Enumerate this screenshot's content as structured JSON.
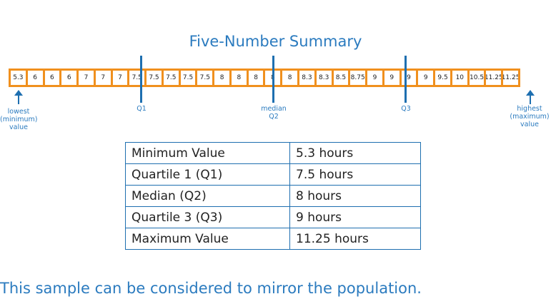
{
  "title": "Five-Number Summary",
  "values": [
    "5.3",
    "6",
    "6",
    "6",
    "7",
    "7",
    "7",
    "7.5",
    "7.5",
    "7.5",
    "7.5",
    "7.5",
    "8",
    "8",
    "8",
    "8",
    "8",
    "8.3",
    "8.3",
    "8.5",
    "8.75",
    "9",
    "9",
    "9",
    "9",
    "9.5",
    "10",
    "10.5",
    "11.25",
    "11.25"
  ],
  "markers": {
    "lowest": "lowest\n(minimum)\nvalue",
    "q1": "Q1",
    "median": "median\nQ2",
    "q3": "Q3",
    "highest": "highest\n(maximum)\nvalue"
  },
  "table": [
    {
      "label": "Minimum Value",
      "value": "5.3 hours"
    },
    {
      "label": "Quartile 1 (Q1)",
      "value": "7.5 hours"
    },
    {
      "label": "Median (Q2)",
      "value": "8 hours"
    },
    {
      "label": "Quartile 3 (Q3)",
      "value": "9 hours"
    },
    {
      "label": "Maximum Value",
      "value": "11.25 hours"
    }
  ],
  "note": "This sample can be considered to mirror the population.",
  "colors": {
    "accent": "#2b7bbf",
    "box": "#f0901e",
    "line": "#1e6fb0"
  }
}
